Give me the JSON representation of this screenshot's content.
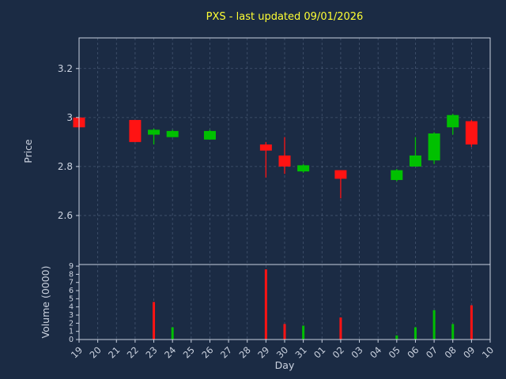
{
  "title": "PXS - last updated 09/01/2026",
  "colors": {
    "background": "#1b2b44",
    "grid": "#8fa3c0",
    "spine": "#c9d1e0",
    "text": "#ccd3e0",
    "title": "#ffff33",
    "up": "#00c000",
    "down": "#ff1313"
  },
  "chart_data": [
    {
      "type": "candlestick",
      "panel": "price",
      "ylabel": "Price",
      "ylim": [
        2.4,
        3.325
      ],
      "yticks": [
        2.6,
        2.8,
        3.0,
        3.2
      ],
      "ytick_labels": [
        "2.6",
        "2.8",
        "3",
        "3.2"
      ],
      "categories": [
        "19",
        "20",
        "21",
        "22",
        "23",
        "24",
        "25",
        "26",
        "27",
        "28",
        "29",
        "30",
        "31",
        "01",
        "02",
        "03",
        "04",
        "05",
        "06",
        "07",
        "08",
        "09",
        "10"
      ],
      "candles": [
        {
          "day": "19",
          "open": 3.0,
          "high": 3.0,
          "low": 2.95,
          "close": 2.96
        },
        {
          "day": "22",
          "open": 2.99,
          "high": 2.99,
          "low": 2.9,
          "close": 2.9
        },
        {
          "day": "23",
          "open": 2.93,
          "high": 2.955,
          "low": 2.89,
          "close": 2.95
        },
        {
          "day": "24",
          "open": 2.92,
          "high": 2.95,
          "low": 2.92,
          "close": 2.945
        },
        {
          "day": "26",
          "open": 2.91,
          "high": 2.95,
          "low": 2.91,
          "close": 2.945
        },
        {
          "day": "29",
          "open": 2.89,
          "high": 2.9,
          "low": 2.755,
          "close": 2.865
        },
        {
          "day": "30",
          "open": 2.845,
          "high": 2.92,
          "low": 2.77,
          "close": 2.8
        },
        {
          "day": "31",
          "open": 2.78,
          "high": 2.81,
          "low": 2.775,
          "close": 2.805
        },
        {
          "day": "02",
          "open": 2.785,
          "high": 2.785,
          "low": 2.67,
          "close": 2.75
        },
        {
          "day": "05",
          "open": 2.745,
          "high": 2.79,
          "low": 2.74,
          "close": 2.785
        },
        {
          "day": "06",
          "open": 2.8,
          "high": 2.92,
          "low": 2.8,
          "close": 2.845
        },
        {
          "day": "07",
          "open": 2.825,
          "high": 2.94,
          "low": 2.81,
          "close": 2.935
        },
        {
          "day": "08",
          "open": 2.96,
          "high": 3.015,
          "low": 2.93,
          "close": 3.01
        },
        {
          "day": "09",
          "open": 2.985,
          "high": 2.99,
          "low": 2.88,
          "close": 2.89
        }
      ]
    },
    {
      "type": "bar",
      "panel": "volume",
      "ylabel": "Volume (0000)",
      "xlabel": "Day",
      "ylim": [
        0,
        9.2
      ],
      "yticks": [
        0,
        1,
        2,
        3,
        4,
        5,
        6,
        7,
        8,
        9
      ],
      "ytick_labels": [
        "0",
        "1",
        "2",
        "3",
        "4",
        "5",
        "6",
        "7",
        "8",
        "9"
      ],
      "bars": [
        {
          "day": "23",
          "value": 4.6,
          "color": "down"
        },
        {
          "day": "24",
          "value": 1.5,
          "color": "up"
        },
        {
          "day": "29",
          "value": 8.6,
          "color": "down"
        },
        {
          "day": "30",
          "value": 1.9,
          "color": "down"
        },
        {
          "day": "31",
          "value": 1.7,
          "color": "up"
        },
        {
          "day": "02",
          "value": 2.7,
          "color": "down"
        },
        {
          "day": "05",
          "value": 0.5,
          "color": "up"
        },
        {
          "day": "06",
          "value": 1.5,
          "color": "up"
        },
        {
          "day": "07",
          "value": 3.6,
          "color": "up"
        },
        {
          "day": "08",
          "value": 1.9,
          "color": "up"
        },
        {
          "day": "09",
          "value": 4.2,
          "color": "down"
        }
      ]
    }
  ]
}
